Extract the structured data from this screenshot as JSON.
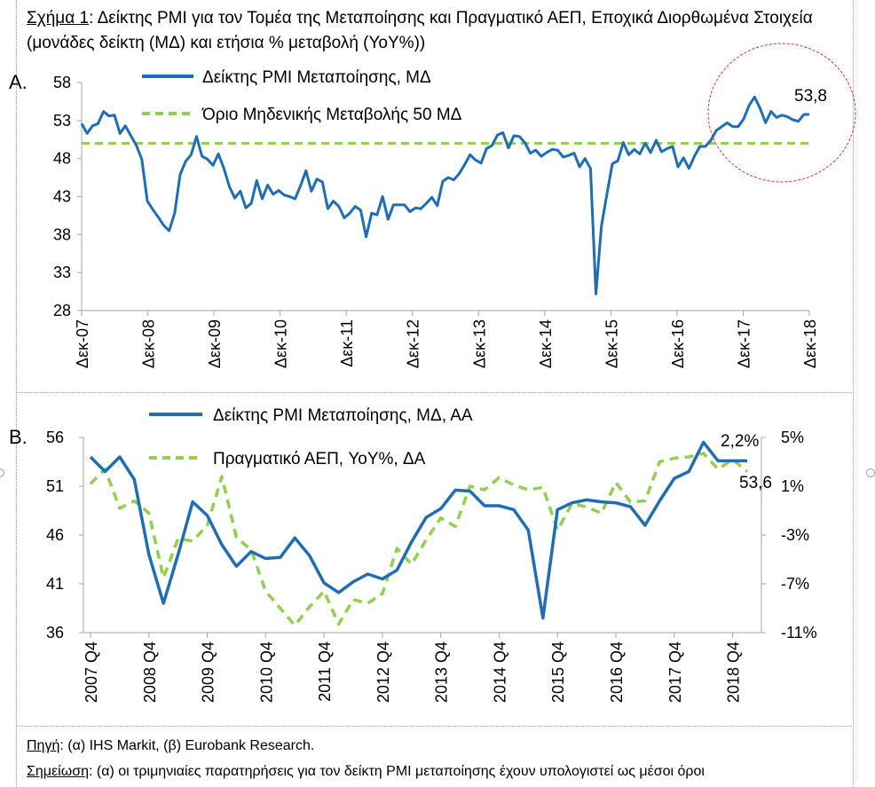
{
  "figure": {
    "title_label": "Σχήμα 1",
    "title_text": ": Δείκτης PMI για τον Τομέα της Μεταποίησης και Πραγματικό ΑΕΠ, Εποχικά Διορθωμένα Στοιχεία (μονάδες δείκτη (ΜΔ) και ετήσια % μεταβολή (YoY%))",
    "panel_a_letter": "A.",
    "panel_b_letter": "B.",
    "source_label": "Πηγή",
    "source_text": ": (α) IHS Markit, (β) Eurobank Research.",
    "note_label": "Σημείωση",
    "note_text": ": (α) οι τριμηνιαίες παρατηρήσεις για τον δείκτη PMI μεταποίησης έχουν υπολογιστεί ως μέσοι όροι"
  },
  "colors": {
    "pmi": "#1f6db5",
    "green": "#92d050",
    "axis": "#a6a6a6",
    "circle": "#e03030"
  },
  "chart_data": [
    {
      "type": "line",
      "x_ticks": [
        "Δεκ-07",
        "Δεκ-08",
        "Δεκ-09",
        "Δεκ-10",
        "Δεκ-11",
        "Δεκ-12",
        "Δεκ-13",
        "Δεκ-14",
        "Δεκ-15",
        "Δεκ-16",
        "Δεκ-17",
        "Δεκ-18"
      ],
      "y_ticks": [
        "58",
        "53",
        "48",
        "43",
        "38",
        "33",
        "28"
      ],
      "ylim": [
        28,
        58
      ],
      "series": [
        {
          "name": "Δείκτης PMI Μεταποίησης, ΜΔ",
          "values": [
            52.6,
            51.3,
            52.3,
            52.6,
            54.2,
            53.6,
            53.7,
            51.3,
            52.3,
            51,
            49.7,
            47.9,
            42.4,
            41.3,
            40.3,
            39.2,
            38.5,
            40.8,
            45.9,
            47.6,
            48.5,
            50.9,
            48.3,
            47.9,
            47.1,
            48.6,
            46.7,
            44.3,
            42.8,
            43.7,
            41.5,
            42.1,
            45.1,
            42.7,
            44.5,
            43.3,
            43.8,
            43.2,
            43,
            42.7,
            44.4,
            46.4,
            43.7,
            45.3,
            44.9,
            41.4,
            42.4,
            41.7,
            40.2,
            40.8,
            41.7,
            41.2,
            37.7,
            40.8,
            40.6,
            43,
            40,
            41.9,
            41.9,
            41.9,
            41,
            41.5,
            41.4,
            42.1,
            42.9,
            41.8,
            45,
            45.5,
            45.2,
            46,
            47.2,
            48.5,
            47.8,
            47.4,
            49.3,
            49.7,
            51.1,
            51.4,
            49.4,
            51,
            50.9,
            50.1,
            48.7,
            49.1,
            48.3,
            48.8,
            49.2,
            49.1,
            48.2,
            48.4,
            48.7,
            46.9,
            48,
            46.7,
            30.2,
            39.1,
            43.3,
            47.3,
            47.7,
            50.1,
            48.5,
            49.2,
            48.6,
            50,
            48.8,
            50.4,
            48.9,
            49.3,
            49.6,
            46.9,
            48.1,
            46.7,
            48.3,
            49.6,
            49.6,
            50.4,
            51.7,
            52.2,
            52.7,
            52.2,
            52.2,
            53.2,
            55,
            56.1,
            54.6,
            52.7,
            54.2,
            53.4,
            53.7,
            53.5,
            53.1,
            52.9,
            53.8,
            53.8
          ]
        },
        {
          "name": "Όριο Μηδενικής Μεταβολής 50 ΜΔ",
          "values": [
            50,
            50
          ]
        }
      ],
      "annotations": [
        "53,8"
      ],
      "legend": "top-left"
    },
    {
      "type": "line",
      "x_ticks": [
        "2007 Q4",
        "2008 Q4",
        "2009 Q4",
        "2010 Q4",
        "2011 Q4",
        "2012 Q4",
        "2013 Q4",
        "2014 Q4",
        "2015 Q4",
        "2016 Q4",
        "2017 Q4",
        "2018 Q4"
      ],
      "y_ticks_left": [
        "56",
        "51",
        "46",
        "41",
        "36"
      ],
      "y_ticks_right": [
        "5%",
        "1%",
        "-3%",
        "-7%",
        "-11%"
      ],
      "ylim_left": [
        36,
        56
      ],
      "ylim_right": [
        -11,
        5
      ],
      "series": [
        {
          "name": "Δείκτης PMI Μεταποίησης, ΜΔ, ΑΑ",
          "axis": "left",
          "values": [
            54,
            52.5,
            54,
            51.7,
            44,
            39,
            44,
            49.4,
            48,
            45,
            42.8,
            44.3,
            43.6,
            43.7,
            45.7,
            43.9,
            41.1,
            40.1,
            41.2,
            42,
            41.5,
            42.4,
            45.3,
            47.8,
            48.7,
            50.6,
            50.5,
            49,
            49,
            48.6,
            46.5,
            37.5,
            48.6,
            49.3,
            49.6,
            49.4,
            49.3,
            48.9,
            47,
            49.5,
            51.8,
            52.5,
            55.5,
            53.6,
            53.6,
            53.6
          ]
        },
        {
          "name": "Πραγματικό ΑΕΠ, YoY%, ΔΑ",
          "axis": "right",
          "values": [
            1.2,
            2.4,
            -0.8,
            -0.2,
            -1.2,
            -6.5,
            -3.3,
            -3.5,
            -2.2,
            1.8,
            -3.2,
            -4.2,
            -7.6,
            -9,
            -10.4,
            -8.9,
            -7.6,
            -10.3,
            -8.3,
            -8.6,
            -7.8,
            -4.1,
            -5.4,
            -3.4,
            -1.6,
            -2.3,
            1,
            0.7,
            1.7,
            1.1,
            0.7,
            0.9,
            -2.6,
            -0.4,
            -0.7,
            -1.2,
            1.3,
            -0.3,
            -0.2,
            3,
            3.3,
            3.4,
            3.7,
            2.4,
            3.2,
            2.2
          ]
        }
      ],
      "annotations": [
        "2,2%",
        "53,6"
      ],
      "legend": "top-center"
    }
  ]
}
